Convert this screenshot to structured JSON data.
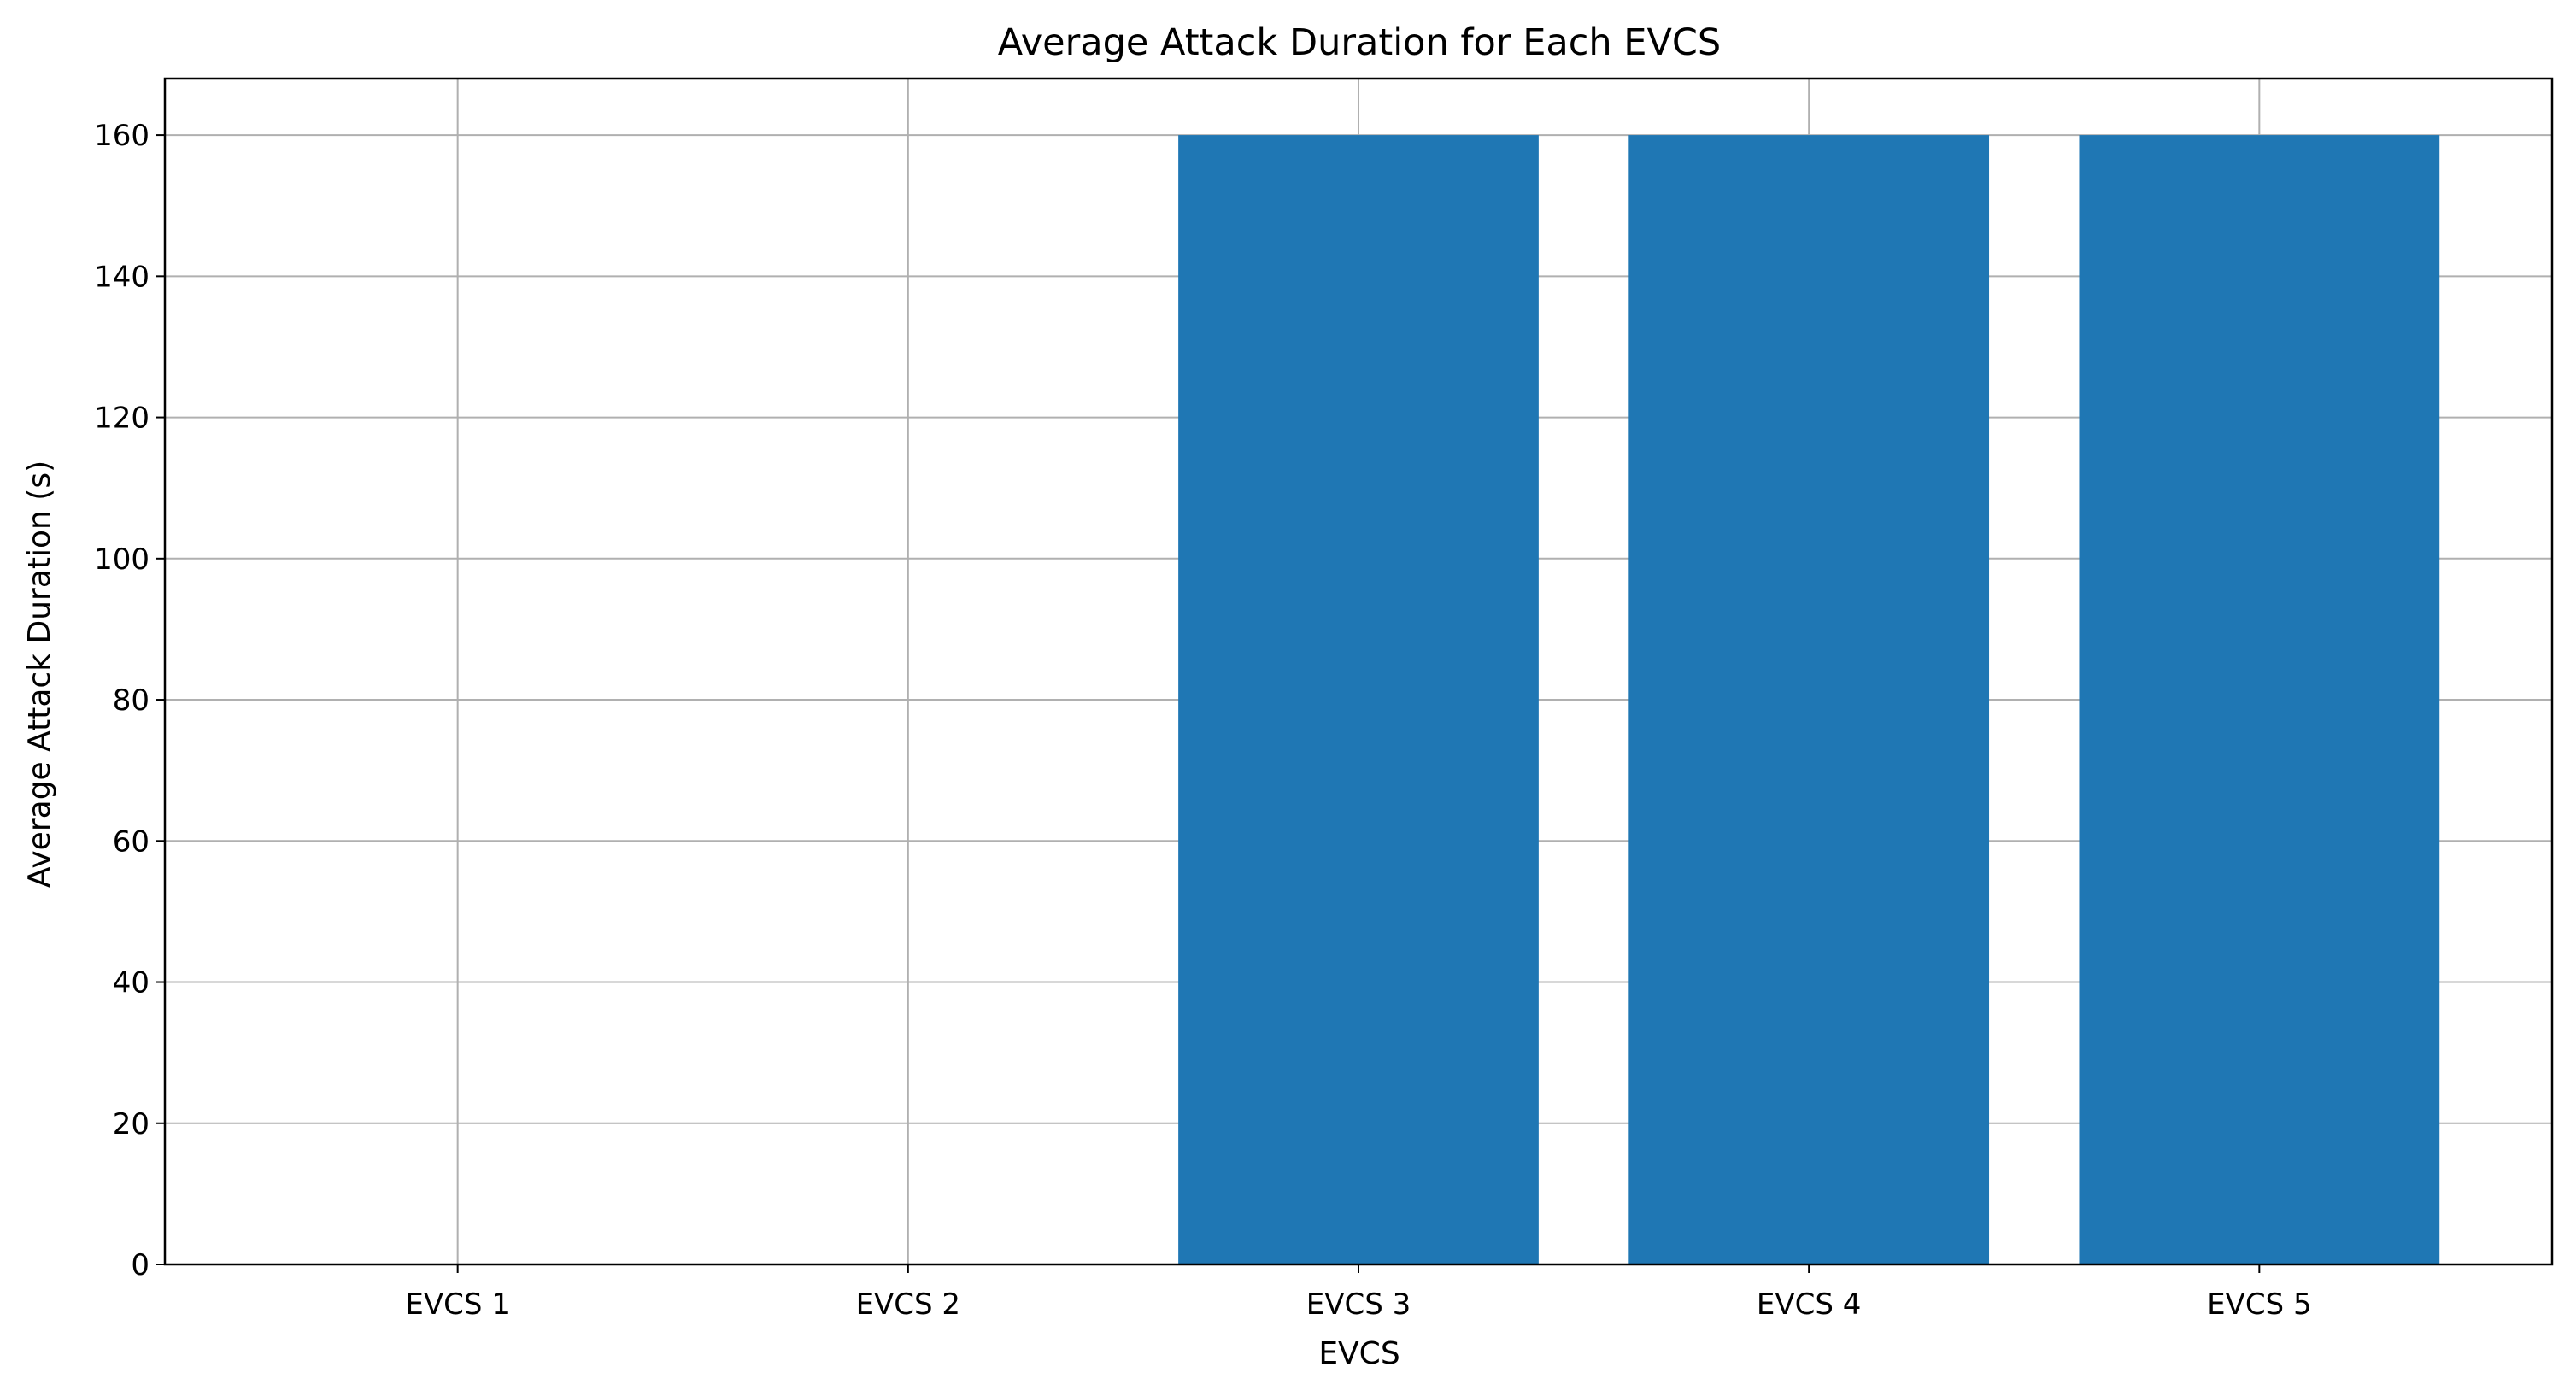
{
  "chart_data": {
    "type": "bar",
    "title": "Average Attack Duration for Each EVCS",
    "xlabel": "EVCS",
    "ylabel": "Average Attack Duration (s)",
    "categories": [
      "EVCS 1",
      "EVCS 2",
      "EVCS 3",
      "EVCS 4",
      "EVCS 5"
    ],
    "values": [
      0,
      0,
      160,
      160,
      160
    ],
    "ylim": [
      0,
      168
    ],
    "yticks": [
      "0",
      "20",
      "40",
      "60",
      "80",
      "100",
      "120",
      "140",
      "160"
    ],
    "grid": true,
    "legend": "none",
    "colors": {
      "bar": "#1f77b4",
      "grid": "#b0b0b0",
      "axes": "#000000"
    }
  }
}
